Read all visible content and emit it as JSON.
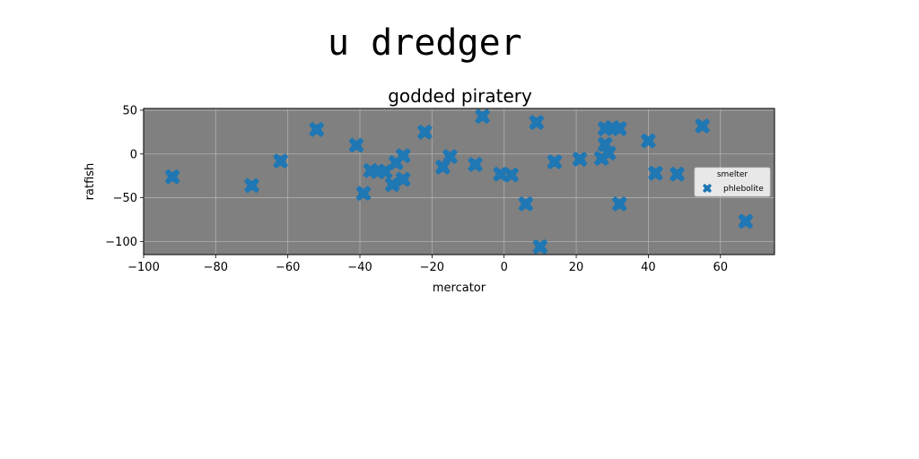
{
  "suptitle": "u dredger",
  "chart_data": {
    "type": "scatter",
    "title": "godded piratery",
    "xlabel": "mercator",
    "ylabel": "ratfish",
    "xlim": [
      -100,
      75
    ],
    "ylim": [
      -115,
      52
    ],
    "xticks": [
      -100,
      -80,
      -60,
      -40,
      -20,
      0,
      20,
      40,
      60
    ],
    "xtick_labels": [
      "−100",
      "−80",
      "−60",
      "−40",
      "−20",
      "0",
      "20",
      "40",
      "60"
    ],
    "yticks": [
      50,
      0,
      -50,
      -100
    ],
    "ytick_labels": [
      "50",
      "0",
      "−50",
      "−100"
    ],
    "grid": true,
    "background": "#808080",
    "legend": {
      "title": "smelter",
      "position": "right",
      "entries": [
        "phlebolite"
      ]
    },
    "marker": "X",
    "series": [
      {
        "name": "phlebolite",
        "color": "#1f77b4",
        "points": [
          {
            "x": -92,
            "y": -26
          },
          {
            "x": -70,
            "y": -36
          },
          {
            "x": -62,
            "y": -8
          },
          {
            "x": -52,
            "y": 28
          },
          {
            "x": -41,
            "y": 10
          },
          {
            "x": -39,
            "y": -45
          },
          {
            "x": -37,
            "y": -19
          },
          {
            "x": -35,
            "y": -20
          },
          {
            "x": -33,
            "y": -20
          },
          {
            "x": -31,
            "y": -35
          },
          {
            "x": -30,
            "y": -10
          },
          {
            "x": -28,
            "y": -29
          },
          {
            "x": -28,
            "y": -2
          },
          {
            "x": -22,
            "y": 25
          },
          {
            "x": -17,
            "y": -15
          },
          {
            "x": -15,
            "y": -3
          },
          {
            "x": -8,
            "y": -12
          },
          {
            "x": -6,
            "y": 43
          },
          {
            "x": -1,
            "y": -23
          },
          {
            "x": 2,
            "y": -24
          },
          {
            "x": 6,
            "y": -57
          },
          {
            "x": 9,
            "y": 36
          },
          {
            "x": 10,
            "y": -106
          },
          {
            "x": 14,
            "y": -9
          },
          {
            "x": 21,
            "y": -6
          },
          {
            "x": 27,
            "y": -5
          },
          {
            "x": 28,
            "y": 29
          },
          {
            "x": 28,
            "y": 11
          },
          {
            "x": 29,
            "y": 1
          },
          {
            "x": 30,
            "y": 30
          },
          {
            "x": 32,
            "y": 29
          },
          {
            "x": 32,
            "y": -57
          },
          {
            "x": 40,
            "y": 15
          },
          {
            "x": 42,
            "y": -22
          },
          {
            "x": 48,
            "y": -23
          },
          {
            "x": 55,
            "y": 32
          },
          {
            "x": 67,
            "y": -77
          }
        ]
      }
    ]
  }
}
